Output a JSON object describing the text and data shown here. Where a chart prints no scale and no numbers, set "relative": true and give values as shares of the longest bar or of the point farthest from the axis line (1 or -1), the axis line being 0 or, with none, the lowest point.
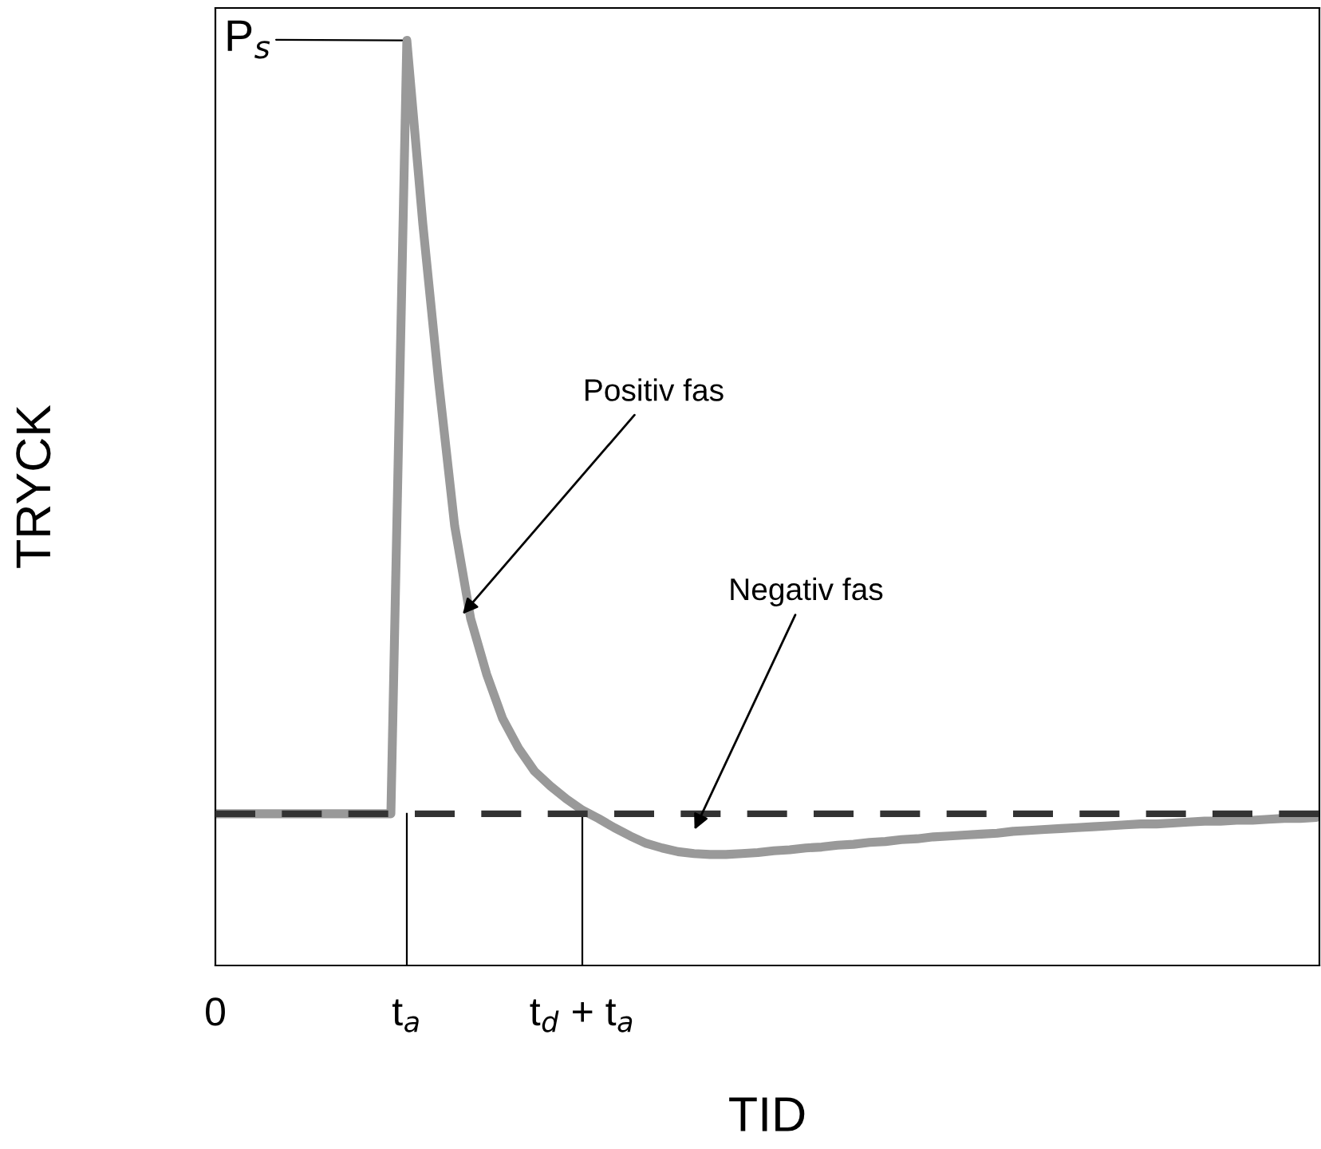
{
  "chart_data": {
    "type": "line",
    "relative": true,
    "xlabel": "TID",
    "ylabel": "TRYCK",
    "categories": [
      "0",
      null,
      null,
      null,
      null,
      null,
      null,
      null,
      null,
      null,
      null,
      null,
      "t$_{a}$",
      null,
      null,
      null,
      null,
      null,
      null,
      null,
      null,
      null,
      null,
      "t$_{d}$ + t$_{a}$",
      null,
      null,
      null,
      null,
      null,
      null,
      null,
      null,
      null,
      null,
      null,
      null,
      null,
      null,
      null,
      null,
      null,
      null,
      null,
      null,
      null,
      null,
      null,
      null,
      null,
      null,
      null,
      null,
      null,
      null,
      null,
      null,
      null,
      null,
      null,
      null,
      null,
      null,
      null,
      null,
      null,
      null,
      null,
      null,
      null,
      null
    ],
    "series": [
      {
        "color": "#999999",
        "values": [
          0.164,
          0.164,
          0.164,
          0.164,
          0.164,
          0.164,
          0.164,
          0.164,
          0.164,
          0.164,
          0.164,
          0.164,
          1,
          0.802,
          0.63,
          0.475,
          0.375,
          0.315,
          0.267,
          0.235,
          0.21,
          0.194,
          0.18,
          0.168,
          0.159,
          0.149,
          0.14,
          0.132,
          0.127,
          0.123,
          0.121,
          0.12,
          0.12,
          0.121,
          0.122,
          0.124,
          0.125,
          0.127,
          0.128,
          0.13,
          0.131,
          0.133,
          0.134,
          0.136,
          0.137,
          0.139,
          0.14,
          0.141,
          0.142,
          0.143,
          0.145,
          0.146,
          0.147,
          0.148,
          0.149,
          0.15,
          0.151,
          0.152,
          0.153,
          0.153,
          0.154,
          0.155,
          0.156,
          0.156,
          0.157,
          0.157,
          0.158,
          0.159,
          0.159,
          0.16
        ]
      }
    ],
    "ref_lines": [
      {
        "axis": "y",
        "value": 0.164,
        "color": "#333333",
        "line_style": "dashed"
      }
    ],
    "annotations": [
      "P$_{s}$",
      "Positiv fas",
      "Negativ fas"
    ],
    "marker": "none",
    "line_style": "solid",
    "grid": false,
    "legend": false
  }
}
